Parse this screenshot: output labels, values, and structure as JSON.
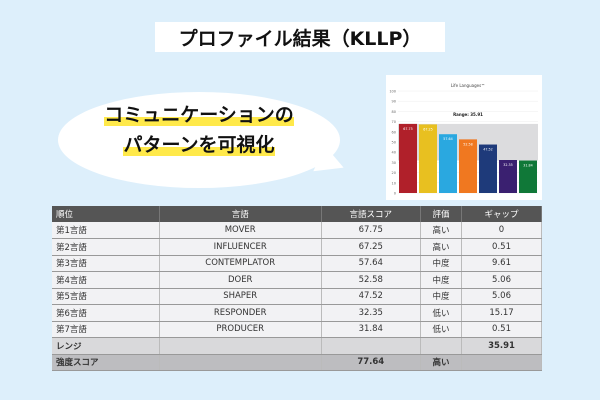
{
  "title": "プロファイル結果（KLLP）",
  "bubble": {
    "line1": "コミュニケーションの",
    "line2": "パターンを可視化"
  },
  "chart_data": {
    "type": "bar",
    "title": "Life Languages™",
    "annotation": "Range: 35.91",
    "categories": [
      "MOVER",
      "INFLUENCER",
      "CONTEMPLATOR",
      "DOER",
      "SHAPER",
      "RESPONDER",
      "PRODUCER"
    ],
    "values": [
      67.75,
      67.25,
      57.64,
      52.58,
      47.52,
      32.35,
      31.84
    ],
    "colors": [
      "#b0202a",
      "#e8c020",
      "#2aa8e0",
      "#f07820",
      "#1e3a7a",
      "#3a2070",
      "#107838"
    ],
    "ylim": [
      0,
      100
    ],
    "yticks": [
      0,
      10,
      20,
      30,
      40,
      50,
      60,
      70,
      80,
      90,
      100
    ],
    "range_band": [
      31.84,
      67.75
    ],
    "grid": true
  },
  "table": {
    "headers": [
      "順位",
      "言語",
      "言語スコア",
      "評価",
      "ギャップ"
    ],
    "rows": [
      [
        "第1言語",
        "MOVER",
        "67.75",
        "高い",
        "0"
      ],
      [
        "第2言語",
        "INFLUENCER",
        "67.25",
        "高い",
        "0.51"
      ],
      [
        "第3言語",
        "CONTEMPLATOR",
        "57.64",
        "中度",
        "9.61"
      ],
      [
        "第4言語",
        "DOER",
        "52.58",
        "中度",
        "5.06"
      ],
      [
        "第5言語",
        "SHAPER",
        "47.52",
        "中度",
        "5.06"
      ],
      [
        "第6言語",
        "RESPONDER",
        "32.35",
        "低い",
        "15.17"
      ],
      [
        "第7言語",
        "PRODUCER",
        "31.84",
        "低い",
        "0.51"
      ]
    ],
    "range": [
      "レンジ",
      "",
      "",
      "",
      "35.91"
    ],
    "strength": [
      "強度スコア",
      "",
      "77.64",
      "高い",
      ""
    ]
  }
}
